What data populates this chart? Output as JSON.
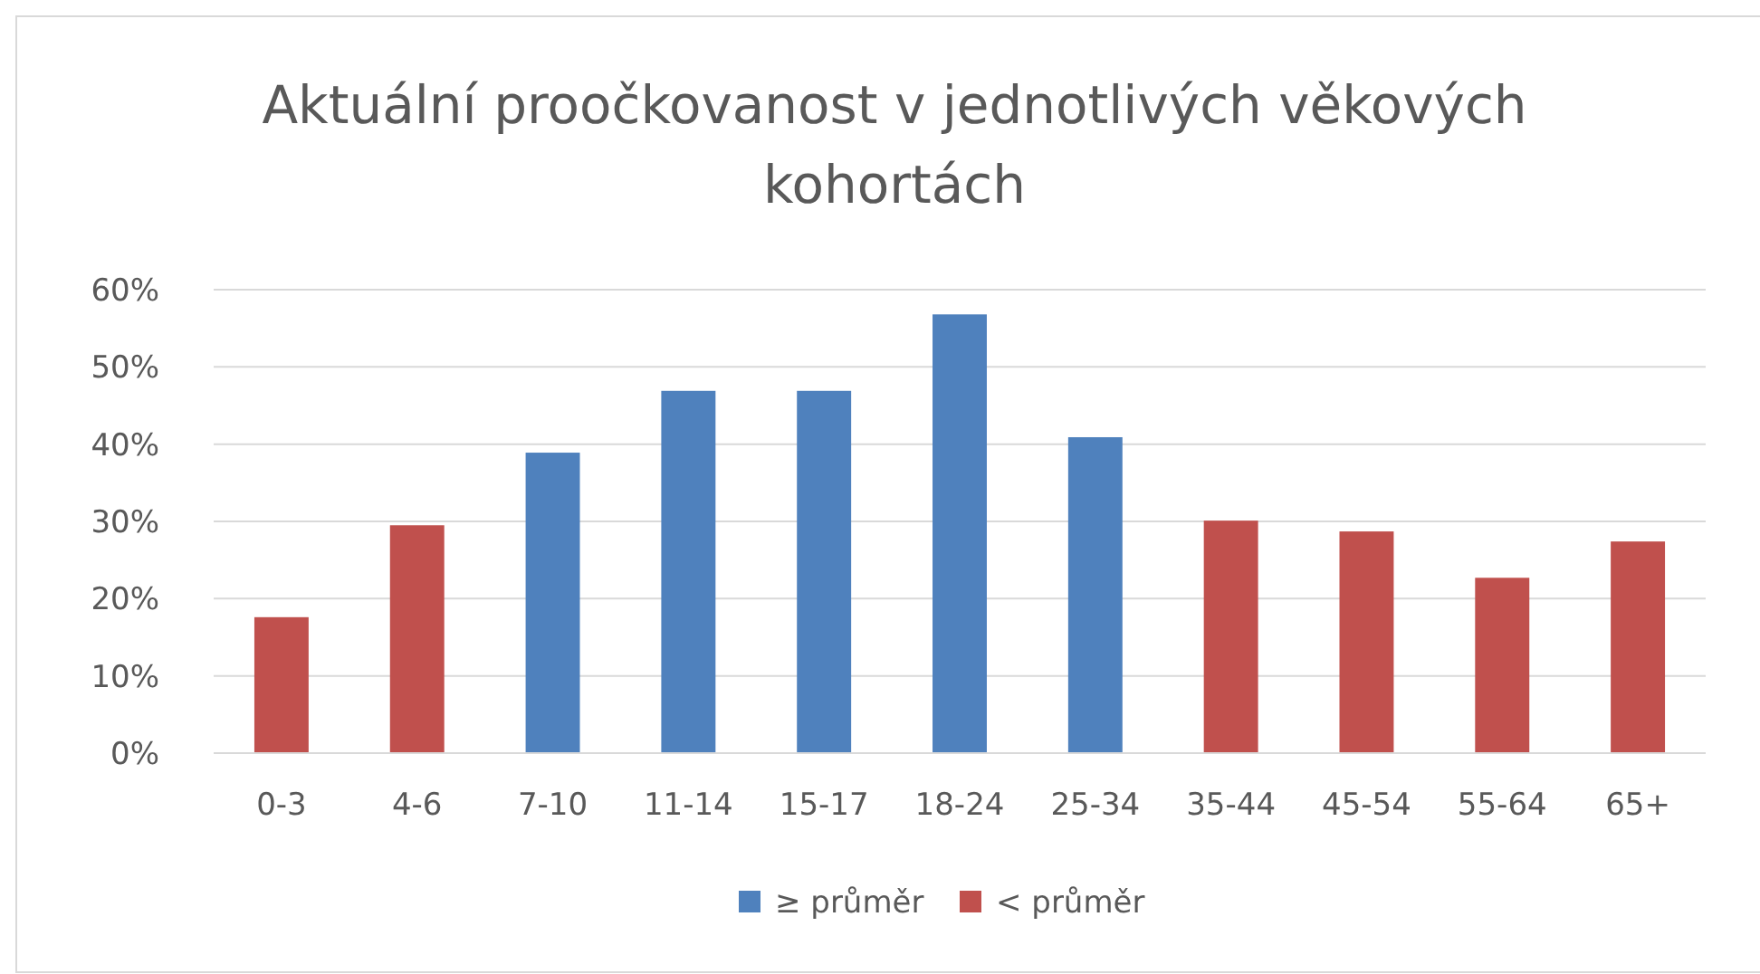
{
  "chart_data": {
    "type": "bar",
    "title": "Aktuální proočkovanost v jednotlivých věkových kohortách",
    "categories": [
      "0-3",
      "4-6",
      "7-10",
      "11-14",
      "15-17",
      "18-24",
      "25-34",
      "35-44",
      "45-54",
      "55-64",
      "65+"
    ],
    "stacked": true,
    "series": [
      {
        "name": "≥ průměr",
        "color": "#4f81bd",
        "values": [
          null,
          null,
          38.9,
          46.9,
          46.9,
          56.8,
          40.9,
          null,
          null,
          null,
          null
        ]
      },
      {
        "name": "< průměr",
        "color": "#c0504d",
        "values": [
          17.6,
          29.5,
          null,
          null,
          null,
          null,
          null,
          30.1,
          28.7,
          22.7,
          27.4
        ]
      }
    ],
    "ylim": [
      0,
      60
    ],
    "yticks": [
      {
        "value": 0,
        "label": "0%"
      },
      {
        "value": 10,
        "label": "10%"
      },
      {
        "value": 20,
        "label": "20%"
      },
      {
        "value": 30,
        "label": "30%"
      },
      {
        "value": 40,
        "label": "40%"
      },
      {
        "value": 50,
        "label": "50%"
      },
      {
        "value": 60,
        "label": "60%"
      }
    ],
    "grid": "y",
    "legend": "bottom"
  }
}
